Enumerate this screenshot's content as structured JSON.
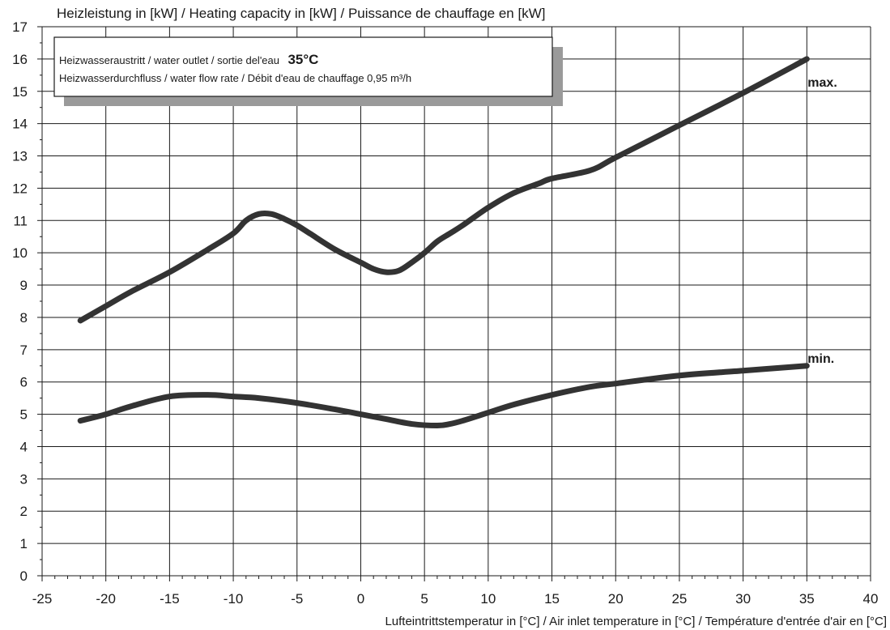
{
  "chart_data": {
    "type": "line",
    "title": "Heizleistung in [kW] / Heating capacity in [kW] / Puissance de chauffage en [kW]",
    "xlabel": "Lufteintrittstemperatur in [°C] / Air inlet temperature in [°C] / Température d'entrée d'air en [°C]",
    "ylabel": "",
    "xlim": [
      -25,
      40
    ],
    "ylim": [
      0,
      17
    ],
    "xticks": [
      -25,
      -20,
      -15,
      -10,
      -5,
      0,
      5,
      10,
      15,
      20,
      25,
      30,
      35,
      40
    ],
    "yticks": [
      0,
      1,
      2,
      3,
      4,
      5,
      6,
      7,
      8,
      9,
      10,
      11,
      12,
      13,
      14,
      15,
      16,
      17
    ],
    "grid": true,
    "series": [
      {
        "name": "max.",
        "x": [
          -22,
          -20,
          -18,
          -15,
          -12,
          -10,
          -9,
          -8,
          -7,
          -6,
          -5,
          -4,
          -2,
          0,
          1,
          2,
          3,
          4,
          5,
          6,
          7,
          8,
          10,
          12,
          14,
          15,
          18,
          20,
          25,
          30,
          35
        ],
        "y": [
          7.9,
          8.35,
          8.8,
          9.4,
          10.1,
          10.6,
          11.0,
          11.2,
          11.2,
          11.05,
          10.85,
          10.6,
          10.1,
          9.7,
          9.5,
          9.4,
          9.45,
          9.7,
          10.0,
          10.35,
          10.6,
          10.85,
          11.4,
          11.85,
          12.15,
          12.3,
          12.55,
          12.95,
          13.95,
          14.95,
          16.0
        ]
      },
      {
        "name": "min.",
        "x": [
          -22,
          -20,
          -18,
          -15,
          -12,
          -10,
          -8,
          -5,
          -2,
          0,
          2,
          4,
          6,
          7,
          8,
          10,
          12,
          15,
          18,
          20,
          25,
          30,
          35
        ],
        "y": [
          4.8,
          5.0,
          5.25,
          5.55,
          5.6,
          5.55,
          5.5,
          5.35,
          5.15,
          5.0,
          4.85,
          4.7,
          4.65,
          4.7,
          4.8,
          5.05,
          5.3,
          5.6,
          5.85,
          5.95,
          6.2,
          6.35,
          6.5
        ]
      }
    ],
    "legend_box": {
      "line1_text": "Heizwasseraustritt / water outlet / sortie del'eau",
      "line1_value": "35°C",
      "line2_text": "Heizwasserdurchfluss / water flow rate / Débit d'eau de chauffage 0,95 m³/h"
    },
    "colors": {
      "line": "#333333",
      "grid": "#1a1a1a",
      "legend_shadow": "#9a9a9a"
    }
  }
}
